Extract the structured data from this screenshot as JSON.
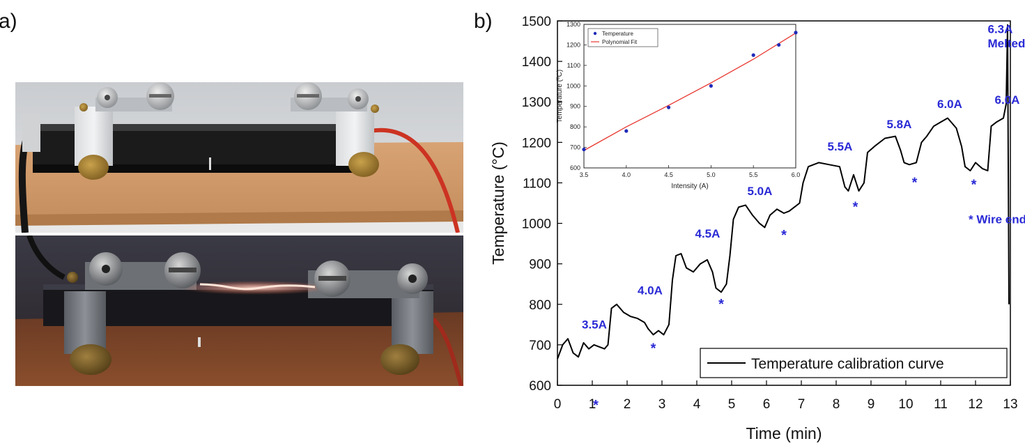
{
  "panel_labels": {
    "a": "a)",
    "b": "b)"
  },
  "chart_data": [
    {
      "type": "line",
      "xlabel": "Time (min)",
      "ylabel": "Temperature (°C)",
      "xlim": [
        0,
        13
      ],
      "ylim": [
        600,
        1500
      ],
      "xticks": [
        0,
        1,
        2,
        3,
        4,
        5,
        6,
        7,
        8,
        9,
        10,
        11,
        12,
        13
      ],
      "yticks": [
        600,
        700,
        800,
        900,
        1000,
        1100,
        1200,
        1300,
        1400,
        1500
      ],
      "legend": {
        "position": "bottom-right",
        "entries": [
          "Temperature calibration curve"
        ]
      },
      "series": [
        {
          "name": "Temperature calibration curve",
          "x": [
            0,
            0.15,
            0.3,
            0.45,
            0.6,
            0.75,
            0.9,
            1.05,
            1.2,
            1.35,
            1.45,
            1.55,
            1.7,
            1.9,
            2.1,
            2.3,
            2.5,
            2.6,
            2.75,
            2.9,
            3.05,
            3.2,
            3.3,
            3.4,
            3.55,
            3.7,
            3.9,
            4.1,
            4.3,
            4.45,
            4.55,
            4.7,
            4.85,
            4.95,
            5.05,
            5.2,
            5.4,
            5.6,
            5.8,
            5.95,
            6.1,
            6.3,
            6.5,
            6.65,
            6.8,
            6.95,
            7.05,
            7.2,
            7.5,
            7.8,
            8.1,
            8.25,
            8.35,
            8.5,
            8.65,
            8.8,
            8.9,
            9.1,
            9.4,
            9.7,
            9.85,
            9.95,
            10.1,
            10.3,
            10.45,
            10.6,
            10.8,
            11.0,
            11.2,
            11.45,
            11.6,
            11.7,
            11.85,
            12.0,
            12.2,
            12.35,
            12.45,
            12.6,
            12.8,
            12.88,
            12.92,
            12.96
          ],
          "values": [
            665,
            700,
            715,
            680,
            670,
            705,
            690,
            700,
            695,
            690,
            700,
            790,
            800,
            780,
            770,
            765,
            755,
            740,
            725,
            735,
            725,
            750,
            860,
            920,
            925,
            890,
            880,
            900,
            910,
            880,
            840,
            830,
            850,
            920,
            1010,
            1040,
            1045,
            1020,
            1000,
            990,
            1020,
            1035,
            1025,
            1030,
            1040,
            1050,
            1100,
            1140,
            1150,
            1145,
            1140,
            1090,
            1080,
            1120,
            1080,
            1100,
            1175,
            1190,
            1210,
            1215,
            1180,
            1150,
            1145,
            1150,
            1200,
            1215,
            1240,
            1250,
            1260,
            1235,
            1190,
            1140,
            1130,
            1150,
            1135,
            1130,
            1240,
            1250,
            1260,
            1295,
            1490,
            800
          ]
        }
      ],
      "annotations": [
        {
          "text": "3.5A",
          "x": 0.7,
          "y": 740
        },
        {
          "text": "4.0A",
          "x": 2.3,
          "y": 825
        },
        {
          "text": "4.5A",
          "x": 3.95,
          "y": 965
        },
        {
          "text": "5.0A",
          "x": 5.45,
          "y": 1070
        },
        {
          "text": "5.5A",
          "x": 7.75,
          "y": 1180
        },
        {
          "text": "5.8A",
          "x": 9.45,
          "y": 1235
        },
        {
          "text": "6.0A",
          "x": 10.9,
          "y": 1285
        },
        {
          "text": "6.0A",
          "x": 12.55,
          "y": 1295
        },
        {
          "text": "6.3A",
          "x": 12.35,
          "y": 1470
        },
        {
          "text": "Melted",
          "x": 12.35,
          "y": 1435
        },
        {
          "text": "* Wire end",
          "x": 11.8,
          "y": 1000
        }
      ],
      "wire_end_markers": [
        {
          "x": 1.1,
          "y": 550
        },
        {
          "x": 2.75,
          "y": 690
        },
        {
          "x": 4.7,
          "y": 800
        },
        {
          "x": 6.5,
          "y": 970
        },
        {
          "x": 8.55,
          "y": 1040
        },
        {
          "x": 10.25,
          "y": 1100
        },
        {
          "x": 11.95,
          "y": 1095
        }
      ],
      "annotation_color": "#2a2ad6",
      "line_color": "#000000"
    },
    {
      "type": "scatter",
      "xlabel": "Intensity (A)",
      "ylabel": "Temperature (ºC)",
      "xlim": [
        3.5,
        6.0
      ],
      "ylim": [
        600,
        1300
      ],
      "xticks": [
        3.5,
        4.0,
        4.5,
        5.0,
        5.5,
        6.0
      ],
      "yticks": [
        600,
        700,
        800,
        900,
        1000,
        1100,
        1200,
        1300
      ],
      "legend": {
        "position": "top-left",
        "entries": [
          "Temperature",
          "Polynomial Fit"
        ]
      },
      "series": [
        {
          "name": "Temperature",
          "x": [
            3.5,
            4.0,
            4.5,
            5.0,
            5.5,
            5.8,
            6.0
          ],
          "values": [
            690,
            780,
            895,
            1000,
            1150,
            1200,
            1260
          ],
          "color": "#1f2ab8"
        },
        {
          "name": "Polynomial Fit",
          "x": [
            3.5,
            4.0,
            4.5,
            5.0,
            5.5,
            6.0
          ],
          "values": [
            685,
            800,
            905,
            1015,
            1130,
            1258
          ],
          "color": "#e8352e"
        }
      ]
    }
  ]
}
